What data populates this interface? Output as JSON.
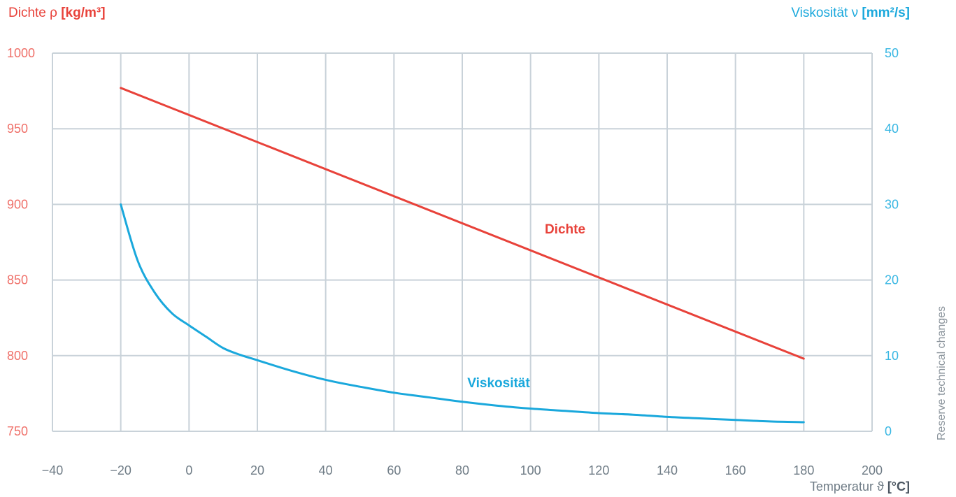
{
  "chart_data": {
    "type": "line",
    "y_left": {
      "label": "Dichte ρ",
      "unit": "[kg/m³]",
      "range": [
        750,
        1000
      ],
      "ticks": [
        "750",
        "800",
        "850",
        "900",
        "950",
        "1000"
      ]
    },
    "y_right": {
      "label": "Viskosität ν",
      "unit": "[mm²/s]",
      "range": [
        0,
        50
      ],
      "ticks": [
        "0",
        "10",
        "20",
        "30",
        "40",
        "50"
      ]
    },
    "x_axis": {
      "label": "Temperatur ϑ",
      "unit": "[°C]",
      "range": [
        -40,
        200
      ],
      "ticks": [
        "−40",
        "−20",
        "0",
        "20",
        "40",
        "60",
        "80",
        "100",
        "120",
        "140",
        "160",
        "180",
        "200"
      ]
    },
    "grid": true,
    "series": [
      {
        "name": "Dichte",
        "axis": "left",
        "color": "#e8423a",
        "points": [
          [
            -20,
            977
          ],
          [
            180,
            798
          ]
        ]
      },
      {
        "name": "Viskosität",
        "axis": "right",
        "color": "#1aa8dc",
        "points": [
          [
            -20,
            30
          ],
          [
            -15,
            22.5
          ],
          [
            -10,
            18.3
          ],
          [
            -5,
            15.6
          ],
          [
            0,
            14
          ],
          [
            5,
            12.5
          ],
          [
            10,
            11
          ],
          [
            15,
            10.1
          ],
          [
            20,
            9.4
          ],
          [
            30,
            8
          ],
          [
            40,
            6.8
          ],
          [
            50,
            5.9
          ],
          [
            60,
            5.1
          ],
          [
            70,
            4.5
          ],
          [
            80,
            3.9
          ],
          [
            90,
            3.4
          ],
          [
            100,
            3
          ],
          [
            110,
            2.7
          ],
          [
            120,
            2.4
          ],
          [
            130,
            2.2
          ],
          [
            140,
            1.9
          ],
          [
            150,
            1.7
          ],
          [
            160,
            1.5
          ],
          [
            170,
            1.3
          ],
          [
            180,
            1.2
          ]
        ]
      }
    ]
  },
  "footer_note": "Reserve technical changes"
}
